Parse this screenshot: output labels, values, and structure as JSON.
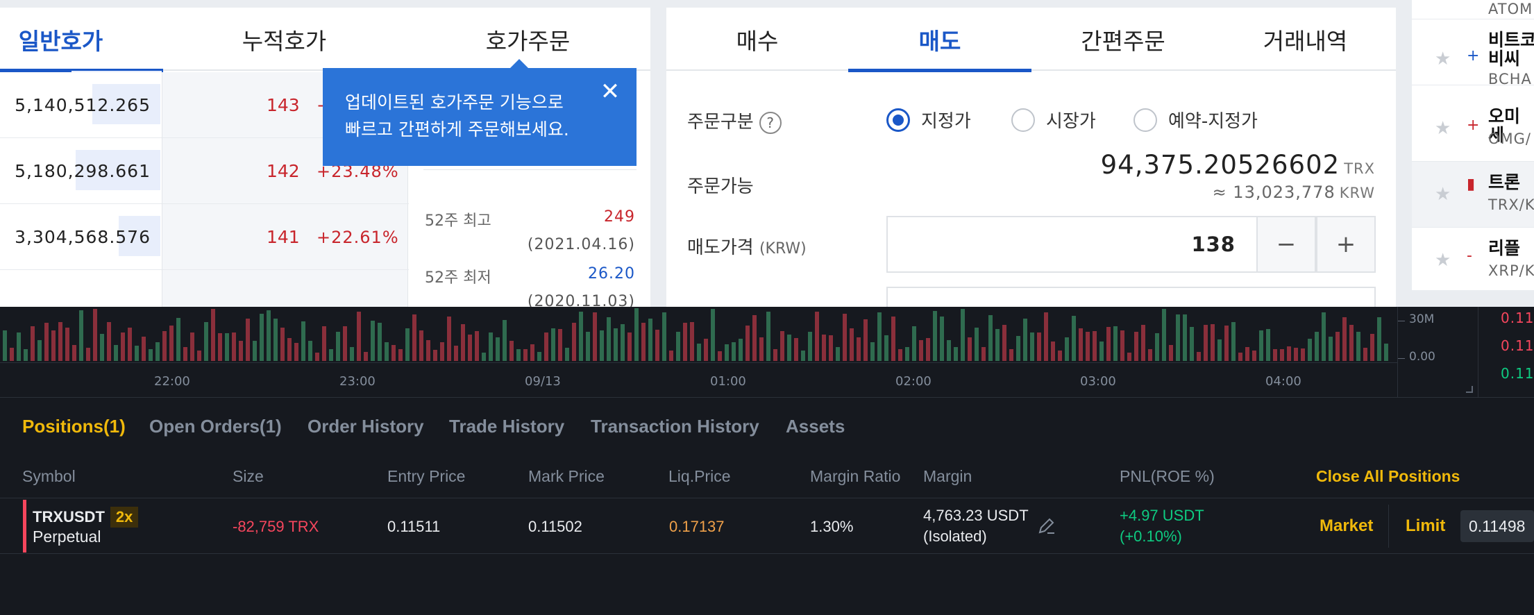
{
  "orderbook": {
    "tabs": [
      "일반호가",
      "누적호가",
      "호가주문"
    ],
    "volumes": [
      "5,140,512.265",
      "5,180,298.661",
      "3,304,568.576"
    ],
    "prices": [
      {
        "price": "143",
        "pct": "+"
      },
      {
        "price": "142",
        "pct": "+23.48%"
      },
      {
        "price": "141",
        "pct": "+22.61%"
      }
    ],
    "stats": {
      "high_label": "52주 최고",
      "high_value": "249",
      "high_date": "(2021.04.16)",
      "low_label": "52주 최저",
      "low_value": "26.20",
      "low_date": "(2020.11.03)"
    },
    "tooltip": {
      "line1": "업데이트된 호가주문 기능으로",
      "line2": "빠르고 간편하게 주문해보세요.",
      "close": "✕"
    }
  },
  "order": {
    "tabs": [
      "매수",
      "매도",
      "간편주문",
      "거래내역"
    ],
    "type_label": "주문구분",
    "help": "?",
    "types": [
      "지정가",
      "시장가",
      "예약-지정가"
    ],
    "avail_label": "주문가능",
    "avail_amount": "94,375.20526602",
    "avail_unit": "TRX",
    "avail_krw": "≈ 13,023,778",
    "avail_krw_unit": "KRW",
    "price_label": "매도가격",
    "price_unit": "(KRW)",
    "price_value": "138",
    "minus": "−",
    "plus": "+"
  },
  "coins": [
    {
      "name": "",
      "sym": "ATOM",
      "mark": ""
    },
    {
      "name": "비트코\n비씨",
      "sym": "BCHA",
      "mark": "+"
    },
    {
      "name": "오미세",
      "sym": "OMG/",
      "mark": "+"
    },
    {
      "name": "트론",
      "sym": "TRX/K",
      "mark": "▮"
    },
    {
      "name": "리플",
      "sym": "XRP/K",
      "mark": "-"
    }
  ],
  "chart": {
    "times": [
      "22:00",
      "23:00",
      "09/13",
      "01:00",
      "02:00",
      "03:00",
      "04:00"
    ],
    "axis": [
      "30M",
      "0.00"
    ],
    "right_prices": [
      "0.11",
      "0.11",
      "0.11"
    ]
  },
  "positions": {
    "tabs": [
      "Positions(1)",
      "Open Orders(1)",
      "Order History",
      "Trade History",
      "Transaction History",
      "Assets"
    ],
    "headers": [
      "Symbol",
      "Size",
      "Entry Price",
      "Mark Price",
      "Liq.Price",
      "Margin Ratio",
      "Margin",
      "PNL(ROE %)"
    ],
    "close_all": "Close All Positions",
    "row": {
      "symbol": "TRXUSDT",
      "contract": "Perpetual",
      "leverage": "2x",
      "size": "-82,759 TRX",
      "entry": "0.11511",
      "mark": "0.11502",
      "liq": "0.17137",
      "ratio": "1.30%",
      "margin": "4,763.23 USDT",
      "margin_mode": "(Isolated)",
      "pnl": "+4.97 USDT",
      "roe": "(+0.10%)",
      "market": "Market",
      "limit": "Limit",
      "limit_price": "0.11498"
    }
  }
}
